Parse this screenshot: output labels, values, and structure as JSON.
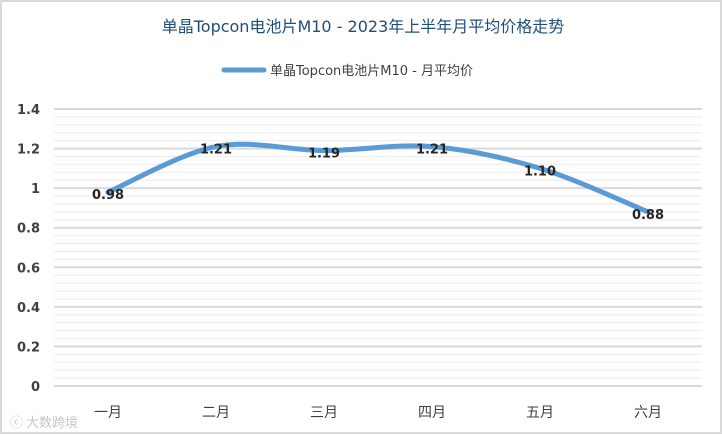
{
  "chart_data": {
    "type": "line",
    "title": "单晶Topcon电池片M10 - 2023年上半年月平均价格走势",
    "categories": [
      "一月",
      "二月",
      "三月",
      "四月",
      "五月",
      "六月"
    ],
    "series": [
      {
        "name": "单晶Topcon电池片M10 - 月平均价",
        "values": [
          0.98,
          1.21,
          1.19,
          1.21,
          1.1,
          0.88
        ],
        "labels": [
          "0.98",
          "1.21",
          "1.19",
          "1.21",
          "1.10",
          "0.88"
        ],
        "color": "#5b9bd5"
      }
    ],
    "ylim": [
      0,
      1.4
    ],
    "yticks": [
      "0",
      "0.2",
      "0.4",
      "0.6",
      "0.8",
      "1",
      "1.2",
      "1.4"
    ],
    "ytick_values": [
      0,
      0.2,
      0.4,
      0.6,
      0.8,
      1,
      1.2,
      1.4
    ],
    "grid": true,
    "legend": "top-center",
    "xlabel": "",
    "ylabel": ""
  },
  "watermark": "大数跨境"
}
